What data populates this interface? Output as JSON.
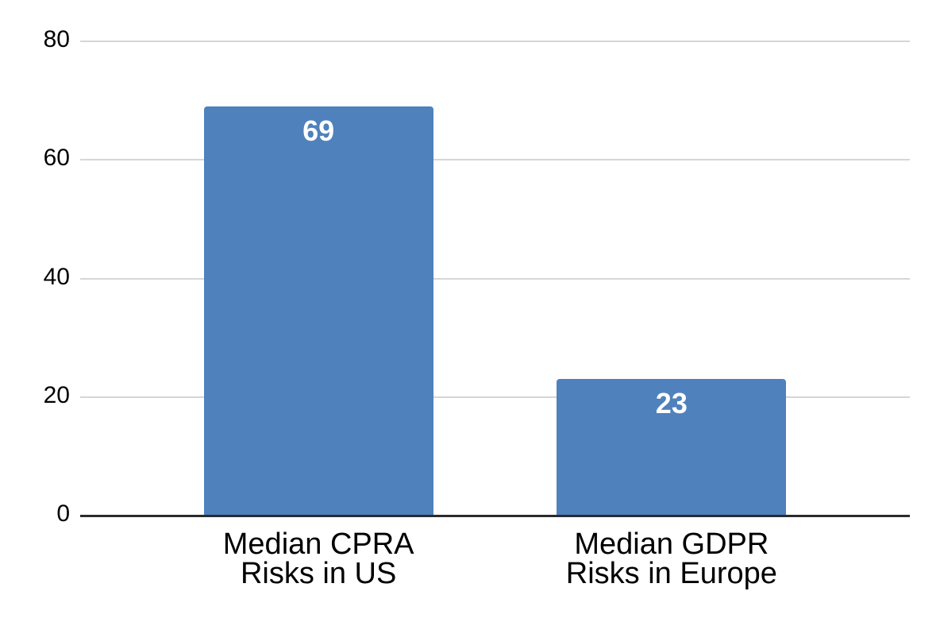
{
  "chart_data": {
    "type": "bar",
    "categories": [
      "Median CPRA Risks in US",
      "Median GDPR Risks in Europe"
    ],
    "category_lines": [
      [
        "Median CPRA",
        "Risks in US"
      ],
      [
        "Median GDPR",
        "Risks in Europe"
      ]
    ],
    "values": [
      69,
      23
    ],
    "bar_labels": [
      "69",
      "23"
    ],
    "yticks": [
      0,
      20,
      40,
      60,
      80
    ],
    "ylim": [
      0,
      80
    ],
    "grid": true,
    "legend_position": "none",
    "colors": {
      "bar": "#4f81bd",
      "bar_label_text": "#ffffff",
      "gridline": "#d6d6d6",
      "axis_line": "#2b2b2b",
      "tick_label_text": "#000000",
      "category_label_text": "#000000",
      "background": "#ffffff"
    }
  }
}
